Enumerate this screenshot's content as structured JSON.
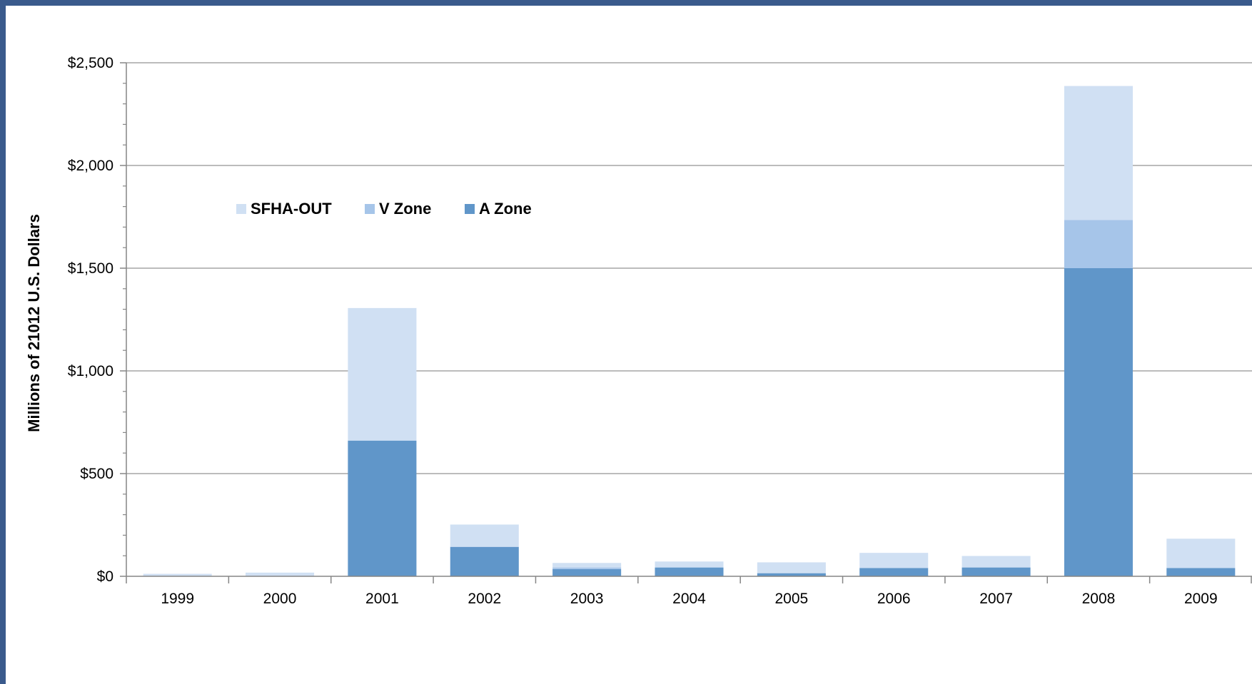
{
  "chart_data": {
    "type": "bar",
    "stacked": true,
    "categories": [
      "1999",
      "2000",
      "2001",
      "2002",
      "2003",
      "2004",
      "2005",
      "2006",
      "2007",
      "2008",
      "2009"
    ],
    "series": [
      {
        "name": "A Zone",
        "color": "#6096c9",
        "values": [
          0,
          0,
          660,
          143,
          35,
          42,
          15,
          40,
          43,
          1500,
          40
        ]
      },
      {
        "name": "V Zone",
        "color": "#a6c5e9",
        "values": [
          0,
          0,
          2,
          1,
          8,
          3,
          1,
          1,
          1,
          235,
          1
        ]
      },
      {
        "name": "SFHA-OUT",
        "color": "#d0e0f3",
        "values": [
          12,
          18,
          644,
          108,
          22,
          27,
          52,
          73,
          55,
          652,
          142
        ]
      }
    ],
    "legend_order": [
      "SFHA-OUT",
      "V Zone",
      "A Zone"
    ],
    "legend_position": "upper-left",
    "ylabel": "Millions of 21012 U.S. Dollars",
    "xlabel": "",
    "ylim": [
      0,
      2500
    ],
    "y_major_step": 500,
    "y_minor_step": 100,
    "yticks": [
      "$0",
      "$500",
      "$1,000",
      "$1,500",
      "$2,000",
      "$2,500"
    ],
    "grid": true,
    "colors": {
      "background": "#ffffff",
      "border": "#3a5a8c",
      "grid": "#a6a6a6",
      "axis": "#868686"
    }
  }
}
